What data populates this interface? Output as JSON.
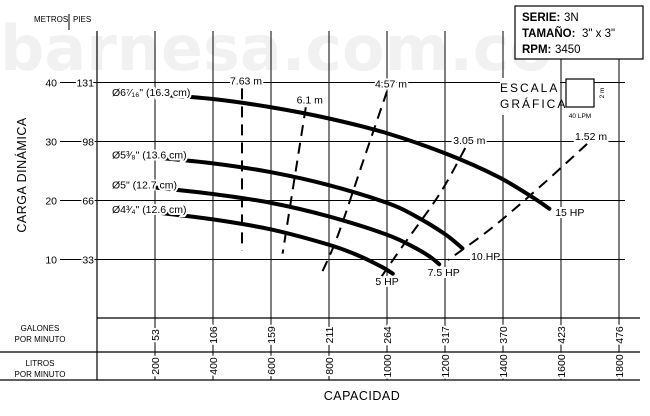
{
  "watermark": "barnesa.com.co",
  "header": {
    "serie_label": "SERIE:",
    "serie_value": "3N",
    "tamano_label": "TAMAÑO:",
    "tamano_value": "3\" x 3\"",
    "rpm_label": "RPM:",
    "rpm_value": "3450"
  },
  "escala": {
    "line1": "ESCALA",
    "line2": "GRÁFICA",
    "vertical_label": "2 m",
    "horizontal_label": "40 LPM"
  },
  "axis": {
    "y_title": "CARGA DINÁMICA",
    "y_unit_metros": "METROS",
    "y_unit_pies": "PIES",
    "x_title": "CAPACIDAD",
    "gpm_row_label": [
      "GALONES",
      "POR MINUTO"
    ],
    "lpm_row_label": [
      "LITROS",
      "POR MINUTO"
    ]
  },
  "chart_data": {
    "type": "line",
    "title": "",
    "xlabel": "CAPACIDAD",
    "ylabel": "CARGA DINÁMICA",
    "x_unit": "LPM",
    "y_unit": "m",
    "xlim": [
      0,
      1800
    ],
    "ylim": [
      0,
      46
    ],
    "grid": true,
    "y_ticks": [
      {
        "m": 10,
        "ft": 33
      },
      {
        "m": 20,
        "ft": 66
      },
      {
        "m": 30,
        "ft": 98
      },
      {
        "m": 40,
        "ft": 131
      }
    ],
    "x_ticks": [
      {
        "lpm": 200,
        "gpm": 53
      },
      {
        "lpm": 400,
        "gpm": 106
      },
      {
        "lpm": 600,
        "gpm": 159
      },
      {
        "lpm": 800,
        "gpm": 211
      },
      {
        "lpm": 1000,
        "gpm": 264
      },
      {
        "lpm": 1200,
        "gpm": 317
      },
      {
        "lpm": 1400,
        "gpm": 370
      },
      {
        "lpm": 1600,
        "gpm": 423
      },
      {
        "lpm": 1800,
        "gpm": 476
      }
    ],
    "impeller_curves": [
      {
        "name": "Ø6⁷⁄₁₆\" (16.3 cm)",
        "points": [
          [
            0,
            38.4
          ],
          [
            200,
            38.0
          ],
          [
            400,
            37.2
          ],
          [
            600,
            35.8
          ],
          [
            800,
            33.9
          ],
          [
            1000,
            31.4
          ],
          [
            1200,
            28.0
          ],
          [
            1380,
            24.1
          ],
          [
            1500,
            20.6
          ],
          [
            1560,
            18.6
          ]
        ]
      },
      {
        "name": "Ø5³⁄₈\" (13.6 cm)",
        "points": [
          [
            0,
            27.8
          ],
          [
            200,
            27.3
          ],
          [
            400,
            26.3
          ],
          [
            600,
            24.8
          ],
          [
            800,
            22.6
          ],
          [
            1000,
            19.6
          ],
          [
            1100,
            17.3
          ],
          [
            1200,
            14.3
          ],
          [
            1260,
            11.9
          ]
        ]
      },
      {
        "name": "Ø5\" (12.7 cm)",
        "points": [
          [
            0,
            22.7
          ],
          [
            200,
            22.2
          ],
          [
            400,
            21.1
          ],
          [
            600,
            19.6
          ],
          [
            800,
            17.3
          ],
          [
            1000,
            14.2
          ],
          [
            1100,
            11.9
          ],
          [
            1150,
            10.4
          ],
          [
            1180,
            9.2
          ]
        ]
      },
      {
        "name": "Ø4³⁄₄\" (12.6 cm)",
        "points": [
          [
            0,
            18.6
          ],
          [
            200,
            18.0
          ],
          [
            400,
            16.8
          ],
          [
            600,
            15.1
          ],
          [
            800,
            12.5
          ],
          [
            900,
            10.7
          ],
          [
            980,
            8.8
          ],
          [
            1020,
            7.6
          ]
        ]
      }
    ],
    "hp_labels": [
      {
        "text": "15 HP",
        "x": 1580,
        "y": 17.4
      },
      {
        "text": "10 HP",
        "x": 1290,
        "y": 9.9
      },
      {
        "text": "7.5 HP",
        "x": 1140,
        "y": 7.2
      },
      {
        "text": "5 HP",
        "x": 960,
        "y": 5.7
      }
    ],
    "npsh_curves": [
      {
        "label": "7.63 m",
        "points": [
          [
            500,
            39.0
          ],
          [
            500,
            11.5
          ]
        ]
      },
      {
        "label": "6.1 m",
        "points": [
          [
            720,
            35.8
          ],
          [
            640,
            11.0
          ]
        ]
      },
      {
        "label": "4.57 m",
        "points": [
          [
            1000,
            38.5
          ],
          [
            920,
            27.0
          ],
          [
            830,
            14.0
          ],
          [
            770,
            7.2
          ]
        ]
      },
      {
        "label": "3.05 m",
        "points": [
          [
            1270,
            28.9
          ],
          [
            1180,
            21.0
          ],
          [
            1050,
            12.0
          ],
          [
            960,
            5.6
          ]
        ]
      },
      {
        "label": "1.52 m",
        "points": [
          [
            1690,
            29.6
          ],
          [
            1520,
            22.0
          ],
          [
            1360,
            15.3
          ],
          [
            1210,
            9.9
          ]
        ]
      }
    ]
  }
}
